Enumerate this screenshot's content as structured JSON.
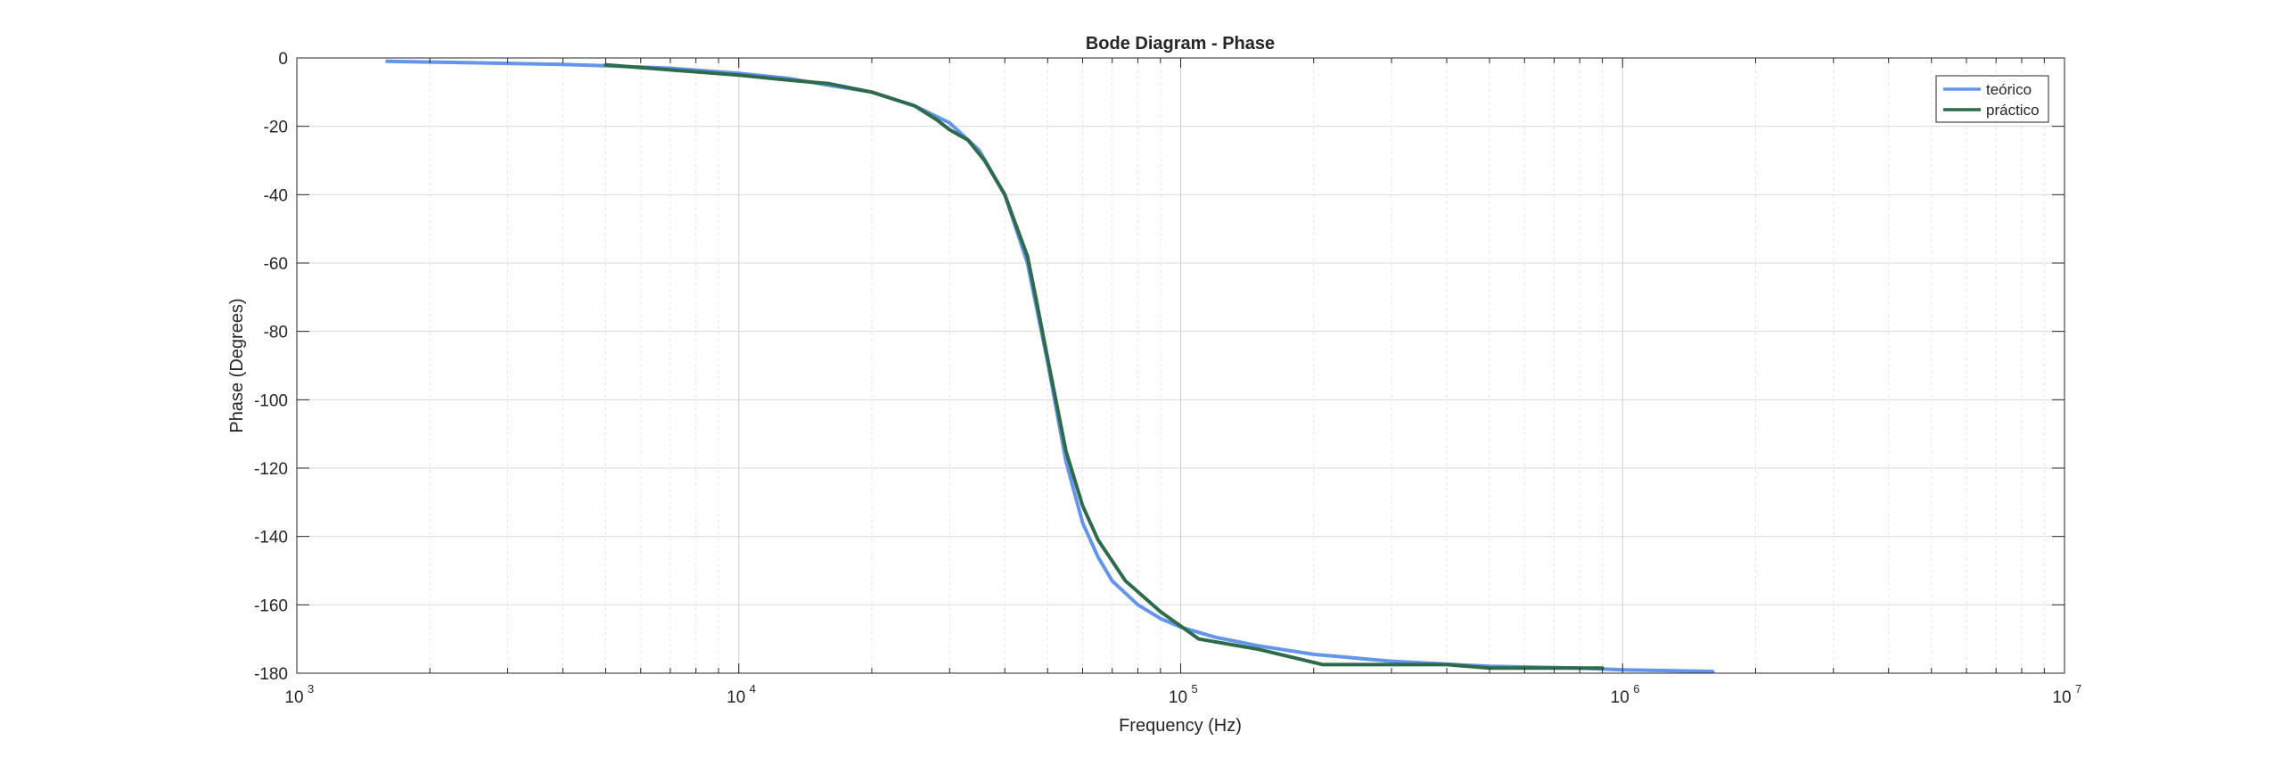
{
  "chart_data": {
    "type": "line",
    "title": "Bode Diagram - Phase",
    "xlabel": "Frequency (Hz)",
    "ylabel": "Phase (Degrees)",
    "xscale": "log",
    "xlim": [
      1000,
      10000000
    ],
    "ylim": [
      -180,
      0
    ],
    "x_ticks": [
      {
        "value": 1000,
        "base": "10",
        "exp": "3"
      },
      {
        "value": 10000,
        "base": "10",
        "exp": "4"
      },
      {
        "value": 100000,
        "base": "10",
        "exp": "5"
      },
      {
        "value": 1000000,
        "base": "10",
        "exp": "6"
      },
      {
        "value": 10000000,
        "base": "10",
        "exp": "7"
      }
    ],
    "y_ticks": [
      0,
      -20,
      -40,
      -60,
      -80,
      -100,
      -120,
      -140,
      -160,
      -180
    ],
    "grid": true,
    "legend_position": "top-right",
    "series": [
      {
        "name": "teórico",
        "color": "#6495ED",
        "x": [
          1600,
          2000,
          3000,
          4000,
          5000,
          7000,
          10000,
          13000,
          16000,
          20000,
          25000,
          30000,
          35000,
          40000,
          45000,
          50000,
          55000,
          60000,
          65000,
          70000,
          80000,
          90000,
          100000,
          120000,
          150000,
          200000,
          300000,
          500000,
          800000,
          1000000,
          1600000
        ],
        "y": [
          -1,
          -1.2,
          -1.6,
          -1.9,
          -2.3,
          -3,
          -4.5,
          -6,
          -8,
          -10,
          -14,
          -19,
          -27,
          -40,
          -60,
          -89,
          -118,
          -136,
          -146,
          -153,
          -160,
          -164,
          -166.5,
          -169.5,
          -172,
          -174.5,
          -176.5,
          -178,
          -178.5,
          -179,
          -179.5
        ]
      },
      {
        "name": "práctico",
        "color": "#2E6B4B",
        "x": [
          5000,
          7000,
          10000,
          13000,
          16000,
          20000,
          25000,
          28000,
          30000,
          33000,
          36000,
          40000,
          45000,
          47000,
          50000,
          55000,
          60000,
          65000,
          75000,
          90000,
          110000,
          150000,
          210000,
          300000,
          400000,
          500000,
          700000,
          900000
        ],
        "y": [
          -2,
          -3.5,
          -5,
          -6.5,
          -7.5,
          -10,
          -14,
          -18,
          -21,
          -24,
          -30,
          -40,
          -58,
          -70,
          -88,
          -115,
          -131,
          -141,
          -153,
          -162,
          -170,
          -173,
          -177.5,
          -177.5,
          -177.5,
          -178.5,
          -178.5,
          -178.5
        ]
      }
    ]
  }
}
